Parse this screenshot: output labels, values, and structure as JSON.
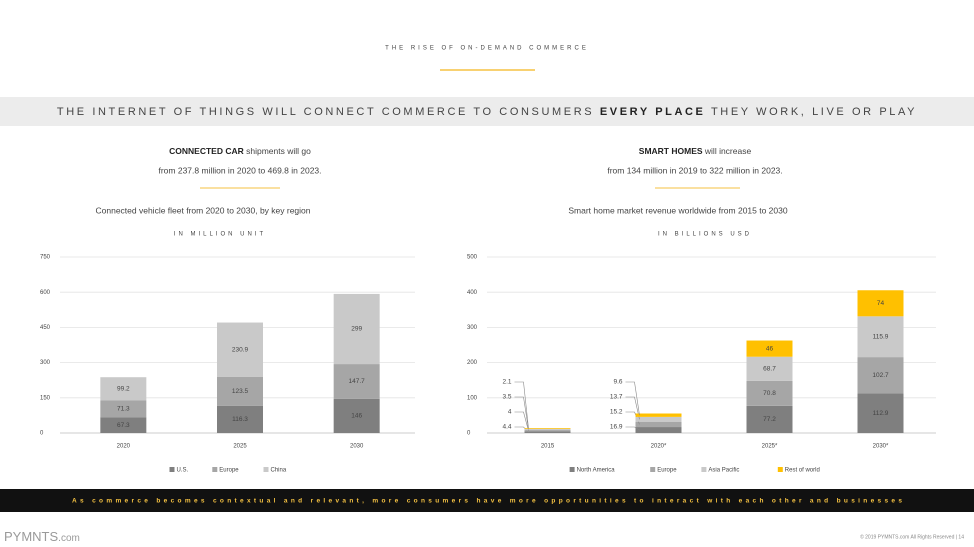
{
  "header": {
    "kicker": "THE RISE OF ON-DEMAND COMMERCE",
    "headline_pre": "THE INTERNET OF THINGS WILL CONNECT COMMERCE TO CONSUMERS",
    "headline_bold": "EVERY PLACE",
    "headline_post": "THEY WORK, LIVE OR PLAY"
  },
  "panels": [
    {
      "highlight": "CONNECTED CAR",
      "text": "shipments will go",
      "detail": "from 237.8 million in 2020 to 469.8 in 2023."
    },
    {
      "highlight": "SMART HOMES",
      "text": "will increase",
      "detail": "from 134 million in 2019 to 322 million in 2023."
    }
  ],
  "chart_data": [
    {
      "type": "bar",
      "stacked": true,
      "title": "Connected vehicle fleet from 2020 to 2030, by key region",
      "subtitle": "IN MILLION UNIT",
      "categories": [
        "2020",
        "2025",
        "2030"
      ],
      "series": [
        {
          "name": "U.S.",
          "color": "#7f7f7f",
          "values": [
            67.3,
            116.3,
            146
          ]
        },
        {
          "name": "Europe",
          "color": "#a6a6a6",
          "values": [
            71.3,
            123.5,
            147.7
          ]
        },
        {
          "name": "China",
          "color": "#c9c9c9",
          "values": [
            99.2,
            230.9,
            299
          ]
        }
      ],
      "ylim": [
        0,
        750
      ],
      "yticks": [
        0,
        150,
        300,
        450,
        600,
        750
      ],
      "grid": true,
      "legend": "bottom"
    },
    {
      "type": "bar",
      "stacked": true,
      "title": "Smart home market revenue worldwide from 2015 to 2030",
      "subtitle": "IN BILLIONS USD",
      "categories": [
        "2015",
        "2020*",
        "2025*",
        "2030*"
      ],
      "series": [
        {
          "name": "North America",
          "color": "#7f7f7f",
          "values": [
            4.4,
            16.9,
            77.2,
            112.9
          ]
        },
        {
          "name": "Europe",
          "color": "#a6a6a6",
          "values": [
            4,
            15.2,
            70.8,
            102.7
          ]
        },
        {
          "name": "Asia Pacific",
          "color": "#c9c9c9",
          "values": [
            3.5,
            13.7,
            68.7,
            115.9
          ]
        },
        {
          "name": "Rest of world",
          "color": "#ffc000",
          "values": [
            2.1,
            9.6,
            46,
            74
          ]
        }
      ],
      "ylim": [
        0,
        500
      ],
      "yticks": [
        0,
        100,
        200,
        300,
        400,
        500
      ],
      "grid": true,
      "legend": "bottom"
    }
  ],
  "footer": {
    "banner": "As commerce becomes contextual and relevant, more consumers have more opportunities to interact with each other and businesses",
    "logo": "PYMNTS",
    "logo_suffix": ".com",
    "copyright": "© 2019 PYMNTS.com All Rights Reserved | 14"
  }
}
